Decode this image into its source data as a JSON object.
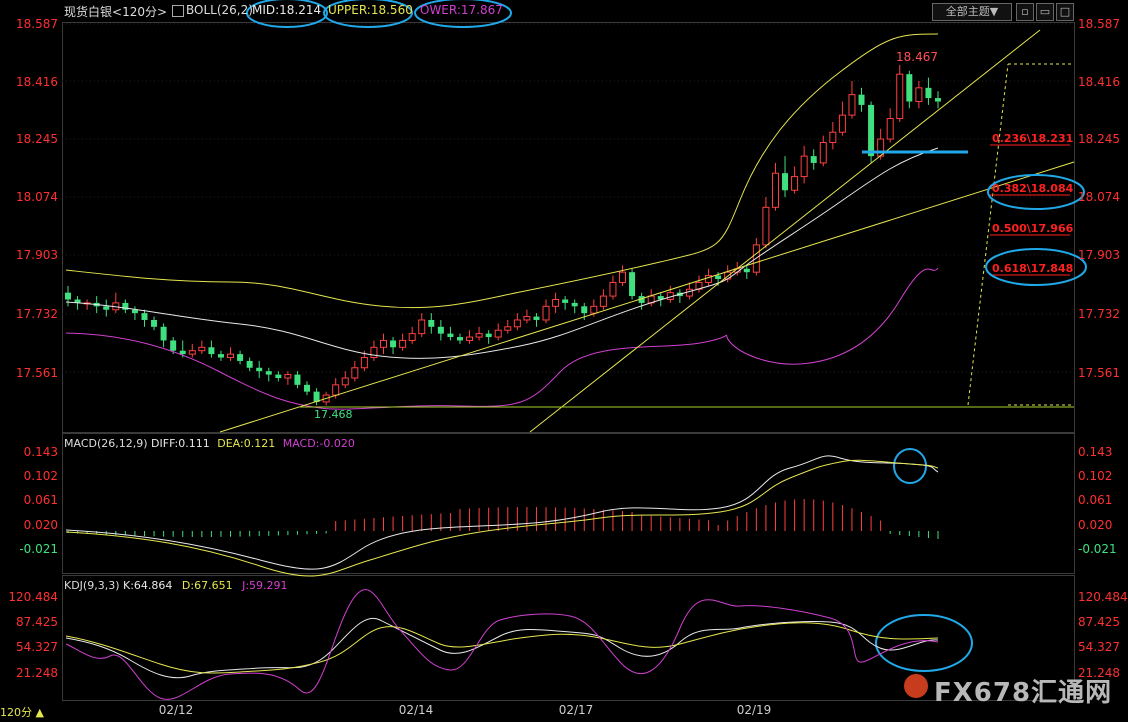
{
  "header": {
    "symbol": "现货白银",
    "period": "<120分>",
    "boll_name": "BOLL(26,2)",
    "mid": "MID:18.214",
    "upper": "UPPER:18.560",
    "lower": "OWER:17.867",
    "theme_button": "全部主题▼",
    "btn_min": "▫",
    "btn_max": "▭",
    "btn_close": "✕",
    "btn_restore": "□"
  },
  "price_axis": {
    "left": [
      "18.587",
      "18.416",
      "18.245",
      "18.074",
      "17.903",
      "17.732",
      "17.561"
    ],
    "right": [
      "18.587",
      "18.416",
      "18.245",
      "18.074",
      "17.903",
      "17.732",
      "17.561"
    ]
  },
  "annotations": {
    "high": "18.467",
    "low": "17.468",
    "fib": [
      "0.236\\18.231",
      "0.382\\18.084",
      "0.500\\17.966",
      "0.618\\17.848"
    ]
  },
  "macd": {
    "name": "MACD(26,12,9)",
    "diff": "DIFF:0.111",
    "dea": "DEA:0.121",
    "macd": "MACD:-0.020",
    "axis": [
      "0.143",
      "0.102",
      "0.061",
      "0.020",
      "-0.021"
    ]
  },
  "kdj": {
    "name": "KDJ(9,3,3)",
    "k": "K:64.864",
    "d": "D:67.651",
    "j": "J:59.291",
    "axis": [
      "120.484",
      "87.425",
      "54.327",
      "21.248"
    ]
  },
  "x_axis": [
    "02/12",
    "02/14",
    "02/17",
    "02/19"
  ],
  "status": {
    "period": "120分"
  },
  "watermark": "FX678汇通网",
  "colors": {
    "up": "#ff4040",
    "down": "#40e080",
    "mid": "#e8e8e8",
    "upper": "#e6e650",
    "lower": "#d040d0",
    "highlight": "#20a8e8"
  },
  "chart_data": {
    "type": "candlestick",
    "ylim": [
      17.46,
      18.62
    ],
    "candles": [
      [
        17.8,
        17.78,
        17.82,
        17.76
      ],
      [
        17.78,
        17.77,
        17.79,
        17.75
      ],
      [
        17.77,
        17.77,
        17.78,
        17.75
      ],
      [
        17.77,
        17.76,
        17.79,
        17.74
      ],
      [
        17.76,
        17.75,
        17.78,
        17.73
      ],
      [
        17.75,
        17.77,
        17.8,
        17.74
      ],
      [
        17.77,
        17.75,
        17.78,
        17.74
      ],
      [
        17.75,
        17.74,
        17.76,
        17.72
      ],
      [
        17.74,
        17.72,
        17.75,
        17.7
      ],
      [
        17.72,
        17.7,
        17.73,
        17.69
      ],
      [
        17.7,
        17.66,
        17.71,
        17.64
      ],
      [
        17.66,
        17.63,
        17.67,
        17.62
      ],
      [
        17.63,
        17.62,
        17.66,
        17.61
      ],
      [
        17.62,
        17.63,
        17.65,
        17.61
      ],
      [
        17.63,
        17.64,
        17.66,
        17.62
      ],
      [
        17.64,
        17.62,
        17.66,
        17.61
      ],
      [
        17.62,
        17.61,
        17.63,
        17.6
      ],
      [
        17.61,
        17.62,
        17.64,
        17.6
      ],
      [
        17.62,
        17.6,
        17.63,
        17.59
      ],
      [
        17.6,
        17.58,
        17.61,
        17.57
      ],
      [
        17.58,
        17.57,
        17.6,
        17.55
      ],
      [
        17.57,
        17.56,
        17.58,
        17.54
      ],
      [
        17.56,
        17.55,
        17.57,
        17.54
      ],
      [
        17.55,
        17.56,
        17.57,
        17.53
      ],
      [
        17.56,
        17.53,
        17.57,
        17.52
      ],
      [
        17.53,
        17.51,
        17.54,
        17.5
      ],
      [
        17.51,
        17.48,
        17.52,
        17.47
      ],
      [
        17.48,
        17.5,
        17.51,
        17.47
      ],
      [
        17.5,
        17.53,
        17.55,
        17.49
      ],
      [
        17.53,
        17.55,
        17.57,
        17.52
      ],
      [
        17.55,
        17.58,
        17.6,
        17.54
      ],
      [
        17.58,
        17.61,
        17.63,
        17.57
      ],
      [
        17.61,
        17.64,
        17.66,
        17.6
      ],
      [
        17.64,
        17.66,
        17.68,
        17.62
      ],
      [
        17.66,
        17.64,
        17.67,
        17.62
      ],
      [
        17.64,
        17.66,
        17.68,
        17.63
      ],
      [
        17.66,
        17.68,
        17.7,
        17.65
      ],
      [
        17.68,
        17.72,
        17.74,
        17.67
      ],
      [
        17.72,
        17.7,
        17.74,
        17.68
      ],
      [
        17.7,
        17.68,
        17.72,
        17.66
      ],
      [
        17.68,
        17.67,
        17.7,
        17.66
      ],
      [
        17.67,
        17.66,
        17.68,
        17.65
      ],
      [
        17.66,
        17.67,
        17.69,
        17.65
      ],
      [
        17.67,
        17.68,
        17.7,
        17.66
      ],
      [
        17.68,
        17.67,
        17.69,
        17.65
      ],
      [
        17.67,
        17.69,
        17.71,
        17.66
      ],
      [
        17.69,
        17.7,
        17.72,
        17.68
      ],
      [
        17.7,
        17.72,
        17.74,
        17.69
      ],
      [
        17.72,
        17.73,
        17.75,
        17.71
      ],
      [
        17.73,
        17.72,
        17.74,
        17.7
      ],
      [
        17.72,
        17.76,
        17.78,
        17.71
      ],
      [
        17.76,
        17.78,
        17.8,
        17.74
      ],
      [
        17.78,
        17.77,
        17.79,
        17.75
      ],
      [
        17.77,
        17.76,
        17.78,
        17.74
      ],
      [
        17.76,
        17.74,
        17.77,
        17.72
      ],
      [
        17.74,
        17.76,
        17.78,
        17.73
      ],
      [
        17.76,
        17.79,
        17.81,
        17.75
      ],
      [
        17.79,
        17.83,
        17.85,
        17.78
      ],
      [
        17.83,
        17.86,
        17.88,
        17.82
      ],
      [
        17.86,
        17.79,
        17.87,
        17.78
      ],
      [
        17.79,
        17.77,
        17.8,
        17.75
      ],
      [
        17.77,
        17.79,
        17.81,
        17.76
      ],
      [
        17.79,
        17.78,
        17.8,
        17.76
      ],
      [
        17.78,
        17.8,
        17.82,
        17.77
      ],
      [
        17.8,
        17.79,
        17.81,
        17.77
      ],
      [
        17.79,
        17.81,
        17.83,
        17.78
      ],
      [
        17.81,
        17.83,
        17.85,
        17.8
      ],
      [
        17.83,
        17.85,
        17.87,
        17.82
      ],
      [
        17.85,
        17.84,
        17.86,
        17.82
      ],
      [
        17.84,
        17.86,
        17.88,
        17.83
      ],
      [
        17.86,
        17.87,
        17.89,
        17.85
      ],
      [
        17.87,
        17.86,
        17.88,
        17.84
      ],
      [
        17.86,
        17.94,
        17.96,
        17.85
      ],
      [
        17.94,
        18.05,
        18.08,
        17.93
      ],
      [
        18.05,
        18.15,
        18.18,
        18.04
      ],
      [
        18.15,
        18.1,
        18.2,
        18.08
      ],
      [
        18.1,
        18.14,
        18.17,
        18.09
      ],
      [
        18.14,
        18.2,
        18.23,
        18.12
      ],
      [
        18.2,
        18.18,
        18.22,
        18.16
      ],
      [
        18.18,
        18.24,
        18.26,
        18.17
      ],
      [
        18.24,
        18.27,
        18.3,
        18.22
      ],
      [
        18.27,
        18.32,
        18.36,
        18.26
      ],
      [
        18.32,
        18.38,
        18.42,
        18.31
      ],
      [
        18.38,
        18.35,
        18.4,
        18.33
      ],
      [
        18.35,
        18.2,
        18.36,
        18.18
      ],
      [
        18.2,
        18.25,
        18.28,
        18.19
      ],
      [
        18.25,
        18.31,
        18.34,
        18.24
      ],
      [
        18.31,
        18.44,
        18.467,
        18.3
      ],
      [
        18.44,
        18.36,
        18.45,
        18.34
      ],
      [
        18.36,
        18.4,
        18.42,
        18.34
      ],
      [
        18.4,
        18.37,
        18.43,
        18.35
      ],
      [
        18.37,
        18.36,
        18.39,
        18.34
      ]
    ]
  }
}
